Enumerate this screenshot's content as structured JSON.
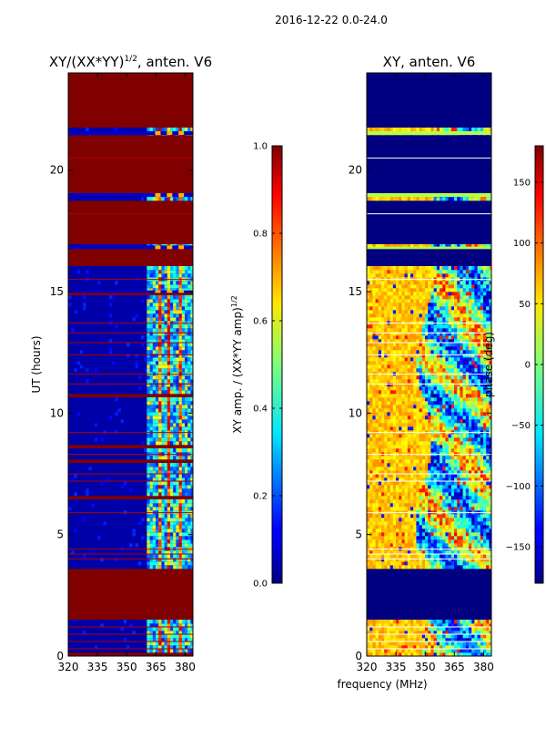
{
  "figure_title": "2016-12-22 0.0-24.0",
  "chart_data": [
    {
      "type": "heatmap",
      "title": "XY/(XX*YY)^{1/2}, anten. V6",
      "title_main": "XY/(XX*YY)",
      "title_sup": "1/2",
      "title_tail": ", anten. V6",
      "xlabel": "",
      "ylabel": "UT (hours)",
      "xlim": [
        320,
        384
      ],
      "ylim": [
        0,
        24
      ],
      "xticks": [
        320,
        335,
        350,
        365,
        380
      ],
      "xtick_labels": [
        "320",
        "335",
        "350",
        "365",
        "380"
      ],
      "yticks": [
        0,
        5,
        10,
        15,
        20
      ],
      "ytick_labels": [
        "0",
        "5",
        "10",
        "15",
        "20"
      ],
      "colorbar": {
        "label": "XY amp. / (XX*YY amp)^{1/2}",
        "label_main": "XY amp. / (XX*YY amp)",
        "label_sup": "1/2",
        "range": [
          0.0,
          1.0
        ],
        "ticks": [
          0.0,
          0.2,
          0.4,
          0.6,
          0.8,
          1.0
        ],
        "tick_labels": [
          "0.0",
          "0.2",
          "0.4",
          "0.6",
          "0.8",
          "1.0"
        ]
      },
      "saturated_hours": [
        [
          0.0,
          0.15
        ],
        [
          1.5,
          3.6
        ],
        [
          6.4,
          6.6
        ],
        [
          7.9,
          8.1
        ],
        [
          8.5,
          8.7
        ],
        [
          10.6,
          10.8
        ],
        [
          14.8,
          15.0
        ],
        [
          16.0,
          16.8
        ],
        [
          17.0,
          18.8
        ],
        [
          19.0,
          21.4
        ],
        [
          21.7,
          24.0
        ]
      ],
      "flagged_hours": [
        0.3,
        0.6,
        0.9,
        1.2,
        4.0,
        4.2,
        4.4,
        5.9,
        7.2,
        7.5,
        8.3,
        9.2,
        11.2,
        11.6,
        12.4,
        12.9,
        13.3,
        13.7,
        15.5,
        18.2,
        20.5
      ]
    },
    {
      "type": "heatmap",
      "title": "XY, anten. V6",
      "xlabel": "frequency (MHz)",
      "ylabel": "",
      "xlim": [
        320,
        384
      ],
      "ylim": [
        0,
        24
      ],
      "xticks": [
        320,
        335,
        350,
        365,
        380
      ],
      "xtick_labels": [
        "320",
        "335",
        "350",
        "365",
        "380"
      ],
      "yticks": [
        0,
        5,
        10,
        15,
        20
      ],
      "ytick_labels": [
        "0",
        "5",
        "10",
        "15",
        "20"
      ],
      "colorbar": {
        "label": "phase (deg)",
        "range": [
          -180,
          180
        ],
        "ticks": [
          -150,
          -100,
          -50,
          0,
          50,
          100,
          150
        ],
        "tick_labels": [
          "−150",
          "−100",
          "−50",
          "0",
          "50",
          "100",
          "150"
        ]
      },
      "empty_hours": [
        [
          0.0,
          0.05
        ],
        [
          1.5,
          3.6
        ],
        [
          6.4,
          6.5
        ],
        [
          16.0,
          16.8
        ],
        [
          17.0,
          18.8
        ],
        [
          19.0,
          21.4
        ],
        [
          21.7,
          24.0
        ]
      ],
      "flagged_hours": [
        0.3,
        0.6,
        0.9,
        1.2,
        4.0,
        4.2,
        4.4,
        5.9,
        7.2,
        7.5,
        8.3,
        9.2,
        11.2,
        11.6,
        12.4,
        12.9,
        13.3,
        13.7,
        15.5,
        18.2,
        20.5
      ]
    }
  ]
}
